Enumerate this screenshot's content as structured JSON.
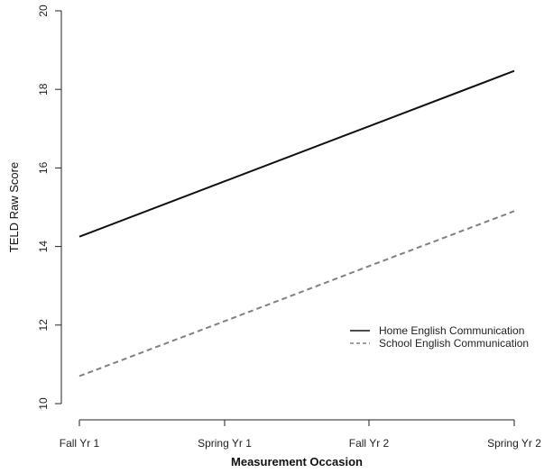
{
  "chart_data": {
    "type": "line",
    "title": "",
    "xlabel": "Measurement Occasion",
    "ylabel": "TELD Raw Score",
    "categories": [
      "Fall Yr 1",
      "Spring Yr 1",
      "Fall Yr 2",
      "Spring Yr 2"
    ],
    "ylim": [
      10,
      20
    ],
    "yticks": [
      10,
      12,
      14,
      16,
      18,
      20
    ],
    "grid": false,
    "legend_position": "bottom-right",
    "series": [
      {
        "name": "Home English Communication",
        "values": [
          14.25,
          15.66,
          17.06,
          18.47
        ],
        "color": "#111111",
        "line_style": "solid"
      },
      {
        "name": "School English Communication",
        "values": [
          10.7,
          12.1,
          13.5,
          14.9
        ],
        "color": "#808080",
        "line_style": "dashed"
      }
    ]
  }
}
